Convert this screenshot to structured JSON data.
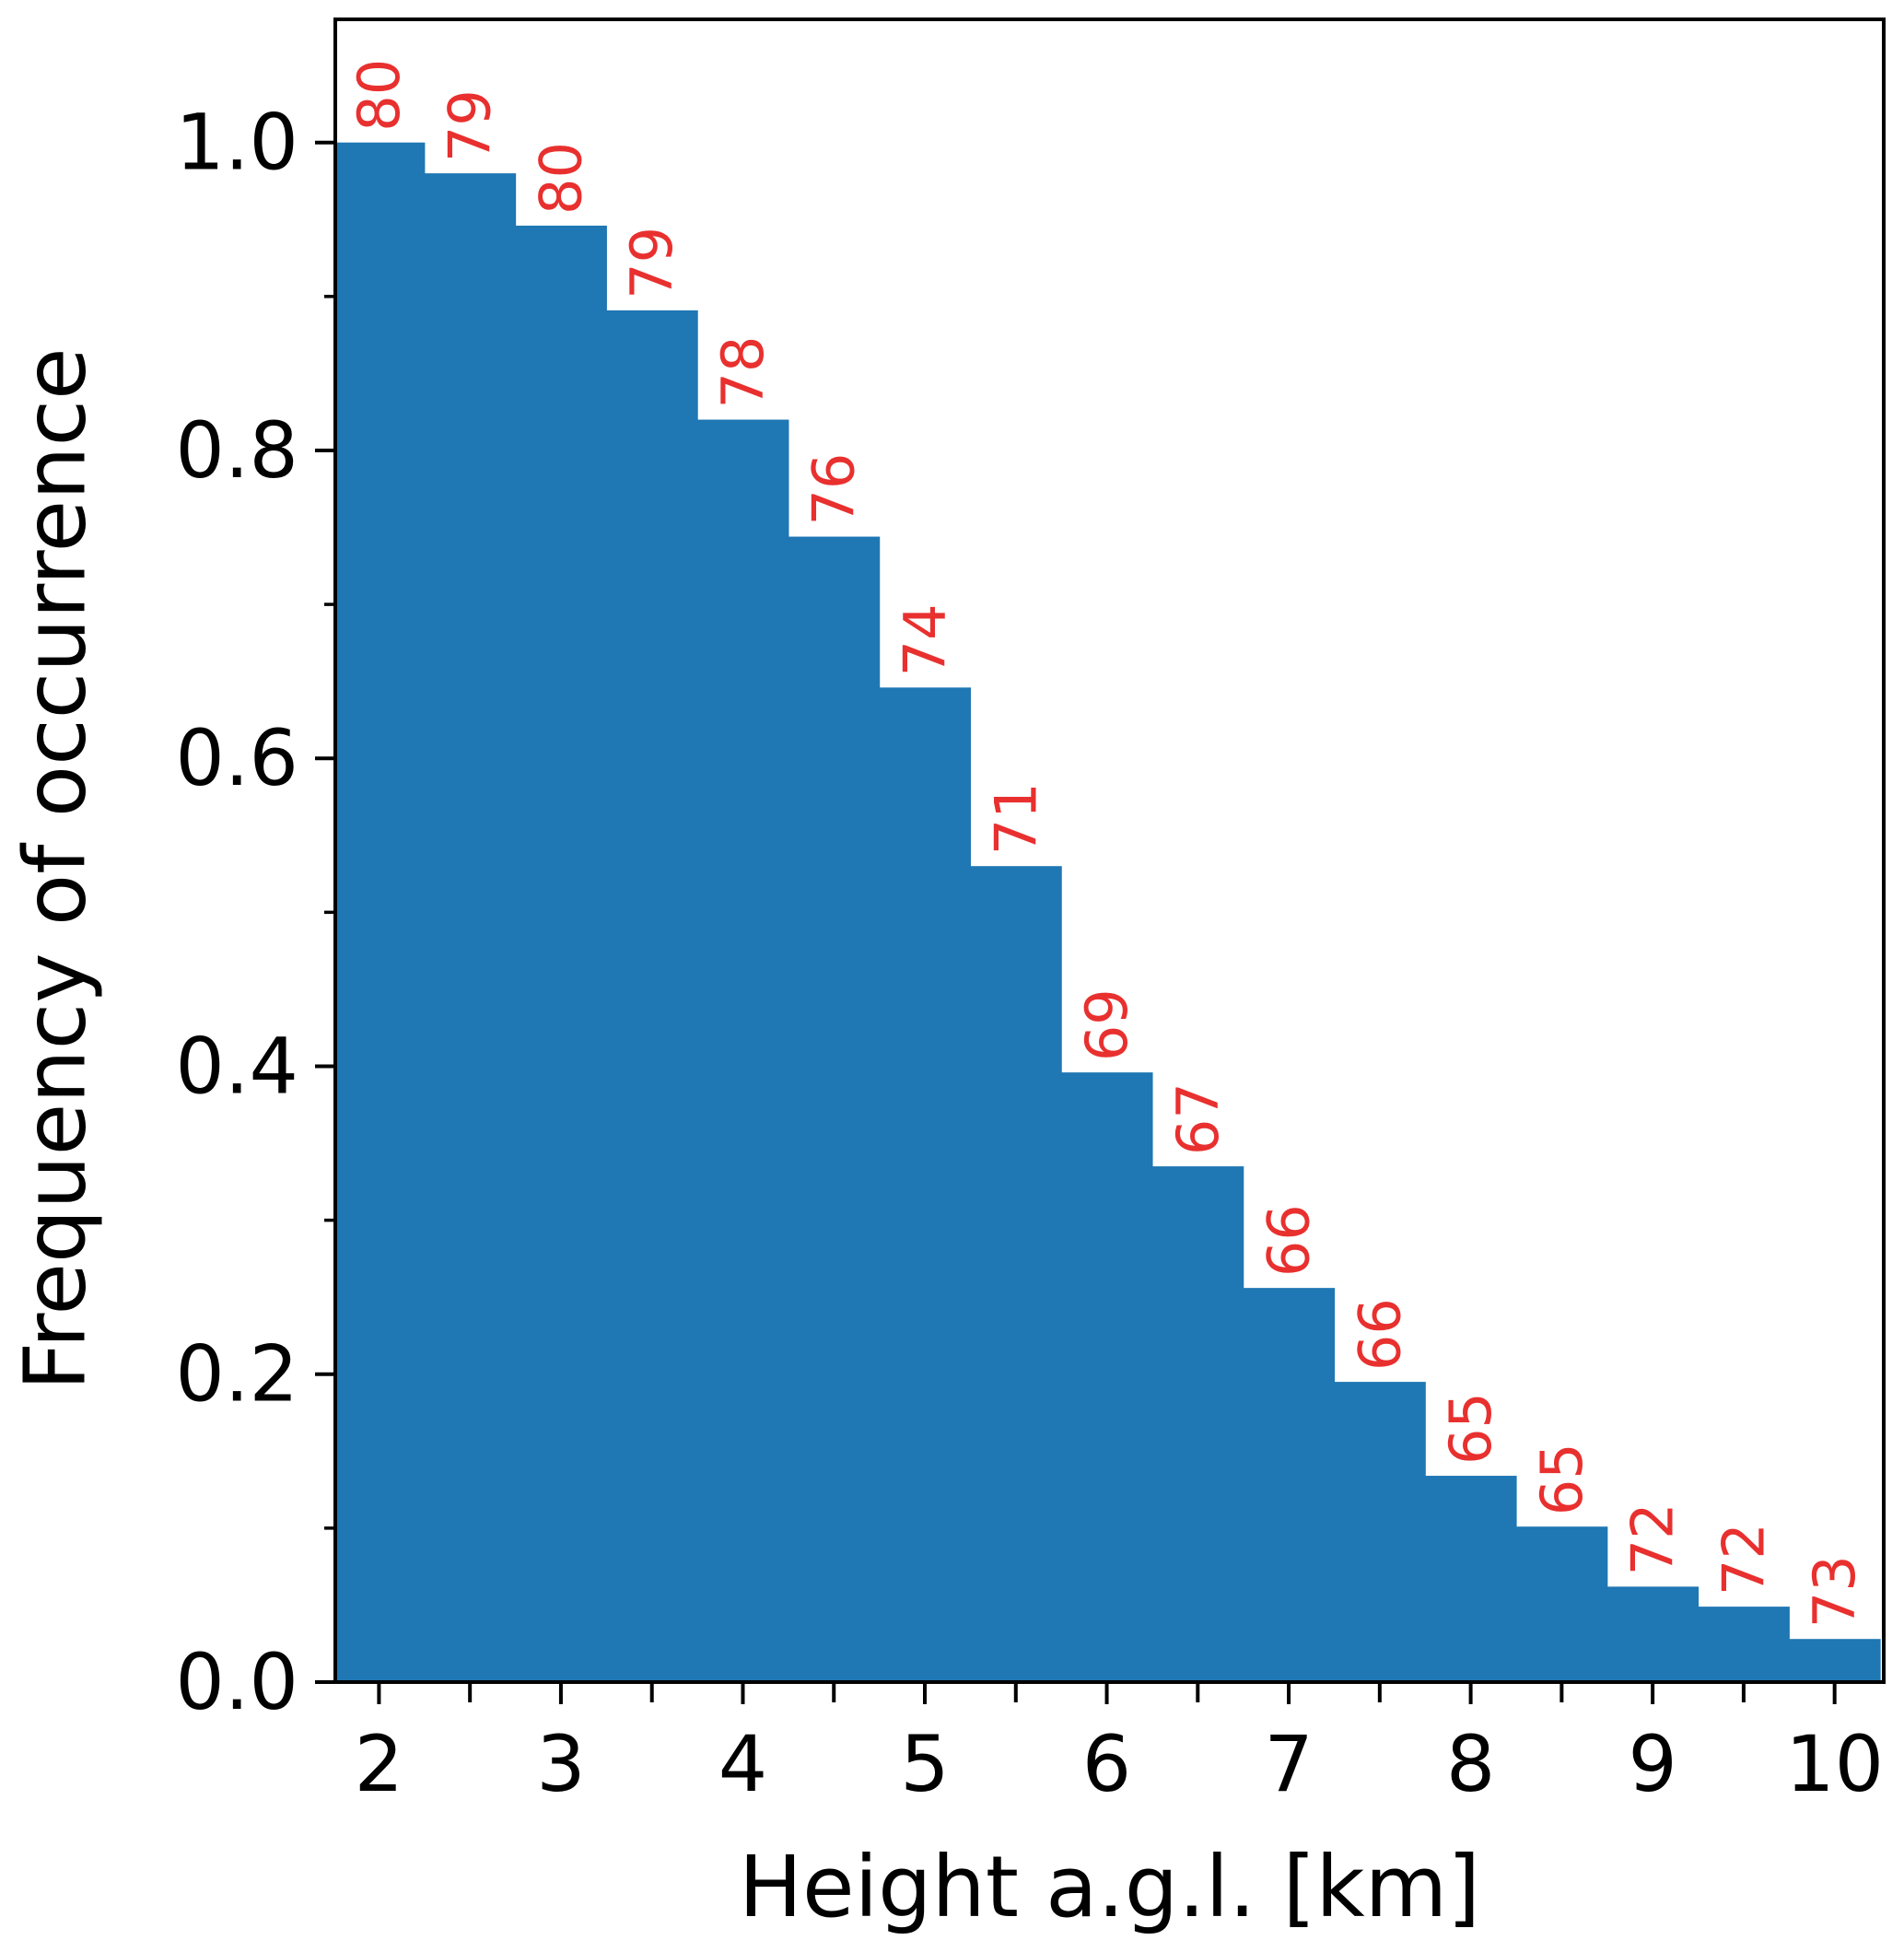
{
  "colors": {
    "bar": "#1f77b4",
    "label": "#e8302f",
    "axis": "#000000",
    "background": "#ffffff"
  },
  "chart_data": {
    "type": "bar",
    "xlabel": "Height a.g.l. [km]",
    "ylabel": "Frequency of occurrence",
    "x": [
      2.0,
      2.5,
      3.0,
      3.5,
      4.0,
      4.5,
      5.0,
      5.5,
      6.0,
      6.5,
      7.0,
      7.5,
      8.0,
      8.5,
      9.0,
      9.5,
      10.0
    ],
    "values": [
      1.0,
      0.98,
      0.946,
      0.891,
      0.82,
      0.744,
      0.646,
      0.53,
      0.396,
      0.335,
      0.256,
      0.195,
      0.134,
      0.101,
      0.062,
      0.049,
      0.028
    ],
    "bar_labels": [
      "80",
      "79",
      "80",
      "79",
      "78",
      "76",
      "74",
      "71",
      "69",
      "67",
      "66",
      "66",
      "65",
      "65",
      "72",
      "72",
      "73"
    ],
    "bar_width": 0.5,
    "xlim": [
      1.76,
      10.27
    ],
    "ylim": [
      0,
      1.08
    ],
    "x_ticks": [
      2,
      3,
      4,
      5,
      6,
      7,
      8,
      9,
      10
    ],
    "x_tick_labels": [
      "2",
      "3",
      "4",
      "5",
      "6",
      "7",
      "8",
      "9",
      "10"
    ],
    "x_minor_ticks": [
      2.5,
      3.5,
      4.5,
      5.5,
      6.5,
      7.5,
      8.5,
      9.5
    ],
    "y_ticks": [
      0.0,
      0.2,
      0.4,
      0.6,
      0.8,
      1.0
    ],
    "y_tick_labels": [
      "0.0",
      "0.2",
      "0.4",
      "0.6",
      "0.8",
      "1.0"
    ],
    "y_minor_ticks": [
      0.1,
      0.3,
      0.5,
      0.7,
      0.9
    ],
    "grid": false,
    "legend": "none"
  }
}
